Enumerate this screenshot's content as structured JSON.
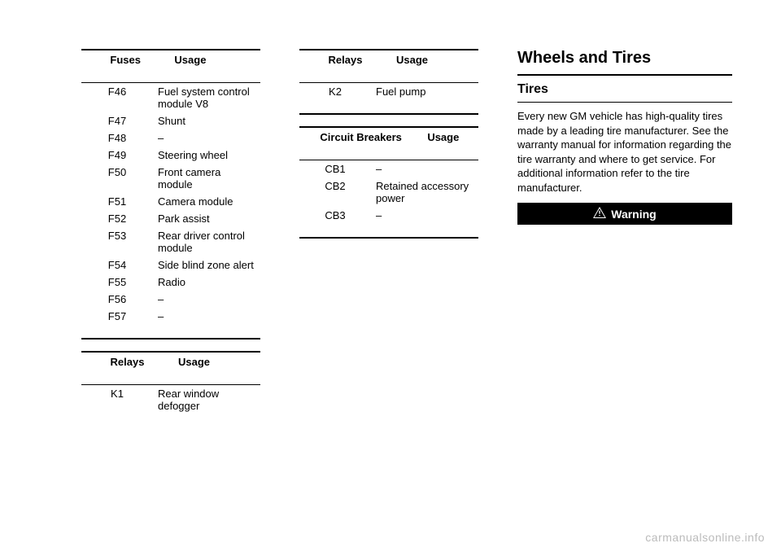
{
  "fuses": {
    "col1_label": "Fuses",
    "col2_label": "Usage",
    "rows": [
      {
        "code": "F46",
        "usage": "Fuel system control module V8"
      },
      {
        "code": "F47",
        "usage": "Shunt"
      },
      {
        "code": "F48",
        "usage": "–"
      },
      {
        "code": "F49",
        "usage": "Steering wheel"
      },
      {
        "code": "F50",
        "usage": "Front camera module"
      },
      {
        "code": "F51",
        "usage": "Camera module"
      },
      {
        "code": "F52",
        "usage": "Park assist"
      },
      {
        "code": "F53",
        "usage": "Rear driver control module"
      },
      {
        "code": "F54",
        "usage": "Side blind zone alert"
      },
      {
        "code": "F55",
        "usage": "Radio"
      },
      {
        "code": "F56",
        "usage": "–"
      },
      {
        "code": "F57",
        "usage": "–"
      }
    ]
  },
  "relays1": {
    "col1_label": "Relays",
    "col2_label": "Usage",
    "rows": [
      {
        "code": "K1",
        "usage": "Rear window defogger"
      }
    ]
  },
  "relays2": {
    "col1_label": "Relays",
    "col2_label": "Usage",
    "rows": [
      {
        "code": "K2",
        "usage": "Fuel pump"
      }
    ]
  },
  "breakers": {
    "col1_label": "Circuit Breakers",
    "col2_label": "Usage",
    "rows": [
      {
        "code": "CB1",
        "usage": "–"
      },
      {
        "code": "CB2",
        "usage": "Retained accessory power"
      },
      {
        "code": "CB3",
        "usage": "–"
      }
    ]
  },
  "section": {
    "heading": "Wheels and Tires",
    "subheading": "Tires",
    "paragraph": "Every new GM vehicle has high-quality tires made by a leading tire manufacturer. See the warranty manual for information regarding the tire warranty and where to get service. For additional information refer to the tire manufacturer.",
    "warning_label": "Warning"
  },
  "watermark": "carmanualsonline.info"
}
